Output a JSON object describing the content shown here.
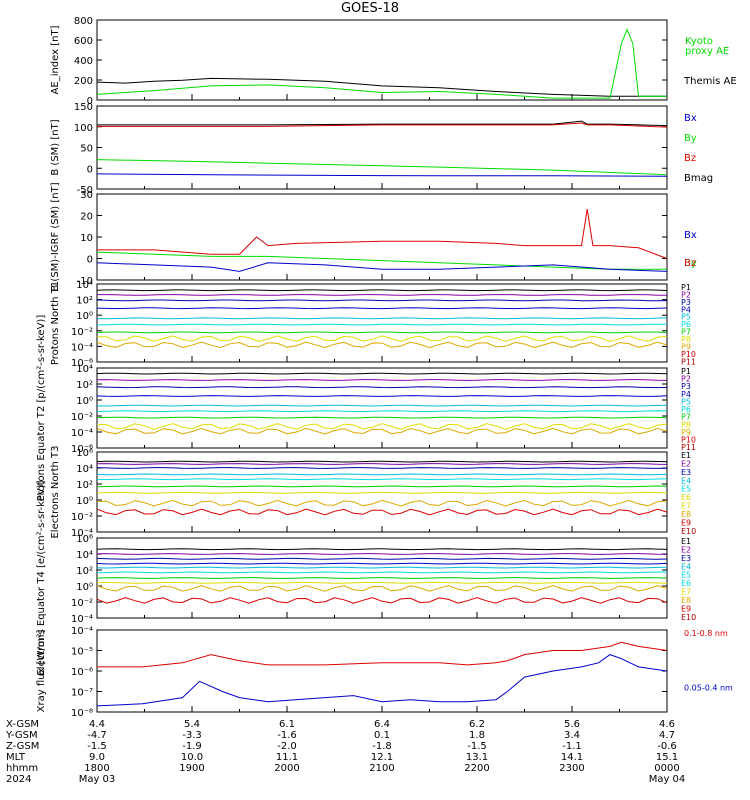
{
  "title": "GOES-18",
  "colors": {
    "black": "#000000",
    "red": "#dd0000",
    "green": "#00dd00",
    "blue": "#0000cc",
    "navy": "#0000aa",
    "purple": "#8800aa",
    "cyan": "#00bbdd",
    "aqua": "#00dddd",
    "lime": "#00cc00",
    "yellow": "#dddd00",
    "gold": "#ddaa00",
    "darkred": "#aa0000"
  },
  "chart_data": [
    {
      "type": "line",
      "ylabel": "AE_index [nT]",
      "yticks": [
        "800",
        "600",
        "400",
        "200",
        "0"
      ],
      "ylim": [
        0,
        850
      ],
      "y_scale": "linear",
      "legend": [
        {
          "text": "Kyoto",
          "color": "green"
        },
        {
          "text": "proxy AE",
          "color": "green"
        },
        {
          "text": "Themis AE",
          "color": "black"
        }
      ],
      "series": [
        {
          "color": "black",
          "x": [
            0,
            0.05,
            0.1,
            0.15,
            0.2,
            0.3,
            0.4,
            0.5,
            0.6,
            0.7,
            0.8,
            0.9,
            0.95,
            1
          ],
          "y": [
            190,
            180,
            200,
            210,
            230,
            220,
            200,
            150,
            130,
            90,
            60,
            40,
            40,
            40
          ]
        },
        {
          "color": "green",
          "x": [
            0,
            0.05,
            0.1,
            0.2,
            0.3,
            0.4,
            0.5,
            0.6,
            0.7,
            0.8,
            0.9,
            0.92,
            0.93,
            0.94,
            0.95,
            1
          ],
          "y": [
            60,
            80,
            100,
            150,
            160,
            130,
            80,
            90,
            60,
            20,
            20,
            600,
            750,
            600,
            40,
            40
          ]
        }
      ]
    },
    {
      "type": "line",
      "ylabel": "B (SM) [nT]",
      "yticks": [
        "150",
        "100",
        "50",
        "0",
        "-50"
      ],
      "ylim": [
        -60,
        160
      ],
      "y_scale": "linear",
      "legend": [
        {
          "text": "Bx",
          "color": "blue"
        },
        {
          "text": "By",
          "color": "green"
        },
        {
          "text": "Bz",
          "color": "red"
        },
        {
          "text": "Bmag",
          "color": "black"
        }
      ],
      "series": [
        {
          "color": "black",
          "x": [
            0,
            0.3,
            0.5,
            0.8,
            0.85,
            0.86,
            0.9,
            1
          ],
          "y": [
            110,
            110,
            112,
            112,
            120,
            112,
            112,
            108
          ]
        },
        {
          "color": "red",
          "x": [
            0,
            0.3,
            0.5,
            0.8,
            0.85,
            0.86,
            0.9,
            1
          ],
          "y": [
            106,
            106,
            110,
            110,
            115,
            110,
            110,
            104
          ]
        },
        {
          "color": "green",
          "x": [
            0,
            0.2,
            0.4,
            0.6,
            0.8,
            1
          ],
          "y": [
            18,
            12,
            5,
            -2,
            -10,
            -22
          ]
        },
        {
          "color": "blue",
          "x": [
            0,
            0.2,
            0.4,
            0.6,
            0.8,
            1
          ],
          "y": [
            -20,
            -22,
            -24,
            -25,
            -25,
            -26
          ]
        }
      ]
    },
    {
      "type": "line",
      "ylabel": "B (SM)-IGRF (SM) [nT]",
      "yticks": [
        "30",
        "20",
        "10",
        "0",
        "-10"
      ],
      "ylim": [
        -10,
        30
      ],
      "y_scale": "linear",
      "legend": [
        {
          "text": "Bx",
          "color": "blue"
        },
        {
          "text": "By",
          "color": "green"
        },
        {
          "text": "Bz",
          "color": "red"
        }
      ],
      "series": [
        {
          "color": "red",
          "x": [
            0,
            0.1,
            0.2,
            0.25,
            0.28,
            0.3,
            0.35,
            0.5,
            0.6,
            0.7,
            0.75,
            0.8,
            0.85,
            0.86,
            0.87,
            0.9,
            0.95,
            1
          ],
          "y": [
            4,
            4,
            2,
            2,
            10,
            6,
            7,
            8,
            8,
            7,
            6,
            6,
            6,
            23,
            6,
            6,
            5,
            0
          ]
        },
        {
          "color": "green",
          "x": [
            0,
            0.1,
            0.2,
            0.3,
            0.4,
            0.5,
            0.6,
            0.7,
            0.8,
            0.9,
            1
          ],
          "y": [
            3,
            2,
            1,
            1,
            0,
            -1,
            -2,
            -3,
            -4,
            -5,
            -5
          ]
        },
        {
          "color": "blue",
          "x": [
            0,
            0.1,
            0.2,
            0.25,
            0.3,
            0.4,
            0.5,
            0.6,
            0.7,
            0.8,
            0.9,
            1
          ],
          "y": [
            -2,
            -3,
            -4,
            -6,
            -2,
            -3,
            -5,
            -5,
            -4,
            -3,
            -5,
            -6
          ]
        }
      ]
    },
    {
      "type": "line",
      "ylabel": "Protons North T1",
      "yticks": [
        "10⁴",
        "10²",
        "10⁰",
        "10⁻²",
        "10⁻⁴",
        "10⁻⁶"
      ],
      "ylim": [
        -6,
        4
      ],
      "y_scale": "log",
      "legend": [
        {
          "text": "P1",
          "color": "black"
        },
        {
          "text": "P2",
          "color": "purple"
        },
        {
          "text": "P3",
          "color": "navy"
        },
        {
          "text": "P4",
          "color": "blue"
        },
        {
          "text": "P5",
          "color": "cyan"
        },
        {
          "text": "P6",
          "color": "aqua"
        },
        {
          "text": "P7",
          "color": "lime"
        },
        {
          "text": "P8",
          "color": "yellow"
        },
        {
          "text": "P9",
          "color": "gold"
        },
        {
          "text": "P10",
          "color": "red"
        },
        {
          "text": "P11",
          "color": "darkred"
        }
      ],
      "series": [
        {
          "color": "black",
          "y": [
            3.2
          ]
        },
        {
          "color": "purple",
          "y": [
            2.6
          ]
        },
        {
          "color": "navy",
          "y": [
            1.9
          ]
        },
        {
          "color": "blue",
          "y": [
            0.9
          ]
        },
        {
          "color": "cyan",
          "y": [
            -0.4
          ]
        },
        {
          "color": "aqua",
          "y": [
            -1.2
          ]
        },
        {
          "color": "lime",
          "y": [
            -2.2
          ]
        },
        {
          "color": "yellow",
          "y": [
            -3.0
          ]
        },
        {
          "color": "gold",
          "y": [
            -3.8
          ]
        }
      ]
    },
    {
      "type": "line",
      "ylabel": "Protons Equator T2 [p/(cm²-s-sr-keV)]",
      "yticks": [
        "10⁴",
        "10²",
        "10⁰",
        "10⁻²",
        "10⁻⁴",
        "10⁻⁶"
      ],
      "ylim": [
        -6,
        4
      ],
      "y_scale": "log",
      "legend": [
        {
          "text": "P1",
          "color": "black"
        },
        {
          "text": "P2",
          "color": "purple"
        },
        {
          "text": "P3",
          "color": "navy"
        },
        {
          "text": "P4",
          "color": "blue"
        },
        {
          "text": "P5",
          "color": "cyan"
        },
        {
          "text": "P6",
          "color": "aqua"
        },
        {
          "text": "P7",
          "color": "lime"
        },
        {
          "text": "P8",
          "color": "yellow"
        },
        {
          "text": "P9",
          "color": "gold"
        },
        {
          "text": "P10",
          "color": "red"
        },
        {
          "text": "P11",
          "color": "darkred"
        }
      ],
      "series": [
        {
          "color": "black",
          "y": [
            3.3
          ]
        },
        {
          "color": "purple",
          "y": [
            2.5
          ]
        },
        {
          "color": "navy",
          "y": [
            1.6
          ]
        },
        {
          "color": "blue",
          "y": [
            0.5
          ]
        },
        {
          "color": "cyan",
          "y": [
            -0.7
          ]
        },
        {
          "color": "aqua",
          "y": [
            -1.4
          ]
        },
        {
          "color": "lime",
          "y": [
            -2.2
          ]
        },
        {
          "color": "yellow",
          "y": [
            -3.3
          ]
        },
        {
          "color": "gold",
          "y": [
            -3.9
          ]
        }
      ]
    },
    {
      "type": "line",
      "ylabel": "Electrons North T3",
      "yticks": [
        "10⁶",
        "10⁴",
        "10²",
        "10⁰",
        "10⁻²",
        "10⁻⁴"
      ],
      "ylim": [
        -4,
        6
      ],
      "y_scale": "log",
      "legend": [
        {
          "text": "E1",
          "color": "black"
        },
        {
          "text": "E2",
          "color": "purple"
        },
        {
          "text": "E3",
          "color": "navy"
        },
        {
          "text": "E4",
          "color": "cyan"
        },
        {
          "text": "E5",
          "color": "aqua"
        },
        {
          "text": "E6",
          "color": "yellow"
        },
        {
          "text": "E7",
          "color": "yellow"
        },
        {
          "text": "E8",
          "color": "gold"
        },
        {
          "text": "E9",
          "color": "red"
        },
        {
          "text": "E10",
          "color": "darkred"
        }
      ],
      "series": [
        {
          "color": "black",
          "y": [
            4.8
          ]
        },
        {
          "color": "purple",
          "y": [
            4.5
          ]
        },
        {
          "color": "navy",
          "y": [
            4.0
          ]
        },
        {
          "color": "cyan",
          "y": [
            3.2
          ]
        },
        {
          "color": "aqua",
          "y": [
            2.6
          ]
        },
        {
          "color": "lime",
          "y": [
            1.7
          ]
        },
        {
          "color": "yellow",
          "y": [
            0.9
          ]
        },
        {
          "color": "gold",
          "y": [
            -0.4
          ]
        },
        {
          "color": "red",
          "y": [
            -1.5
          ]
        }
      ]
    },
    {
      "type": "line",
      "ylabel": "Electrons Equator T4 [e/(cm²-s-sr-keV)]",
      "yticks": [
        "10⁶",
        "10⁴",
        "10²",
        "10⁰",
        "10⁻²",
        "10⁻⁴"
      ],
      "ylim": [
        -4,
        6
      ],
      "y_scale": "log",
      "legend": [
        {
          "text": "E1",
          "color": "black"
        },
        {
          "text": "E2",
          "color": "purple"
        },
        {
          "text": "E3",
          "color": "navy"
        },
        {
          "text": "E4",
          "color": "cyan"
        },
        {
          "text": "E5",
          "color": "aqua"
        },
        {
          "text": "E6",
          "color": "aqua"
        },
        {
          "text": "E7",
          "color": "yellow"
        },
        {
          "text": "E8",
          "color": "gold"
        },
        {
          "text": "E9",
          "color": "red"
        },
        {
          "text": "E10",
          "color": "darkred"
        }
      ],
      "series": [
        {
          "color": "black",
          "y": [
            4.6
          ]
        },
        {
          "color": "purple",
          "y": [
            4.0
          ]
        },
        {
          "color": "navy",
          "y": [
            3.4
          ]
        },
        {
          "color": "blue",
          "y": [
            2.8
          ]
        },
        {
          "color": "cyan",
          "y": [
            2.3
          ]
        },
        {
          "color": "aqua",
          "y": [
            1.7
          ]
        },
        {
          "color": "lime",
          "y": [
            1.0
          ]
        },
        {
          "color": "yellow",
          "y": [
            0.4
          ]
        },
        {
          "color": "gold",
          "y": [
            -0.3
          ]
        },
        {
          "color": "red",
          "y": [
            -1.8
          ]
        }
      ]
    },
    {
      "type": "line",
      "ylabel": "Xray flux [W/m²]",
      "yticks": [
        "10⁻⁴",
        "10⁻⁵",
        "10⁻⁶",
        "10⁻⁷",
        "10⁻⁸"
      ],
      "ylim": [
        -8,
        -4
      ],
      "y_scale": "log",
      "legend": [
        {
          "text": "0.1-0.8 nm",
          "color": "red"
        },
        {
          "text": "0.05-0.4 nm",
          "color": "blue"
        }
      ],
      "series": [
        {
          "color": "red",
          "x": [
            0,
            0.08,
            0.15,
            0.2,
            0.25,
            0.3,
            0.4,
            0.5,
            0.6,
            0.65,
            0.7,
            0.72,
            0.75,
            0.8,
            0.85,
            0.9,
            0.92,
            0.95,
            1
          ],
          "y": [
            -5.8,
            -5.8,
            -5.6,
            -5.2,
            -5.5,
            -5.7,
            -5.7,
            -5.6,
            -5.6,
            -5.7,
            -5.6,
            -5.5,
            -5.2,
            -5.0,
            -5.0,
            -4.8,
            -4.6,
            -4.8,
            -5.0
          ]
        },
        {
          "color": "blue",
          "x": [
            0,
            0.08,
            0.15,
            0.18,
            0.22,
            0.25,
            0.3,
            0.4,
            0.45,
            0.5,
            0.55,
            0.6,
            0.65,
            0.7,
            0.72,
            0.75,
            0.8,
            0.85,
            0.88,
            0.9,
            0.92,
            0.95,
            1
          ],
          "y": [
            -7.7,
            -7.6,
            -7.3,
            -6.5,
            -7.0,
            -7.3,
            -7.5,
            -7.3,
            -7.2,
            -7.5,
            -7.4,
            -7.5,
            -7.5,
            -7.4,
            -7.0,
            -6.3,
            -6.0,
            -5.8,
            -5.6,
            -5.2,
            -5.4,
            -5.8,
            -6.0
          ]
        }
      ]
    }
  ],
  "footer": {
    "rows": [
      {
        "label": "X-GSM",
        "values": [
          "4.4",
          "5.4",
          "6.1",
          "6.4",
          "6.2",
          "5.6",
          "4.6"
        ]
      },
      {
        "label": "Y-GSM",
        "values": [
          "-4.7",
          "-3.3",
          "-1.6",
          "0.1",
          "1.8",
          "3.4",
          "4.7"
        ]
      },
      {
        "label": "Z-GSM",
        "values": [
          "-1.5",
          "-1.9",
          "-2.0",
          "-1.8",
          "-1.5",
          "-1.1",
          "-0.6"
        ]
      },
      {
        "label": "MLT",
        "values": [
          "9.0",
          "10.0",
          "11.1",
          "12.1",
          "13.1",
          "14.1",
          "15.1"
        ]
      },
      {
        "label": "hhmm",
        "values": [
          "1800",
          "1900",
          "2000",
          "2100",
          "2200",
          "2300",
          "0000"
        ]
      },
      {
        "label": "2024",
        "values": [
          "May 03",
          "",
          "",
          "",
          "",
          "",
          "May 04"
        ]
      }
    ]
  }
}
